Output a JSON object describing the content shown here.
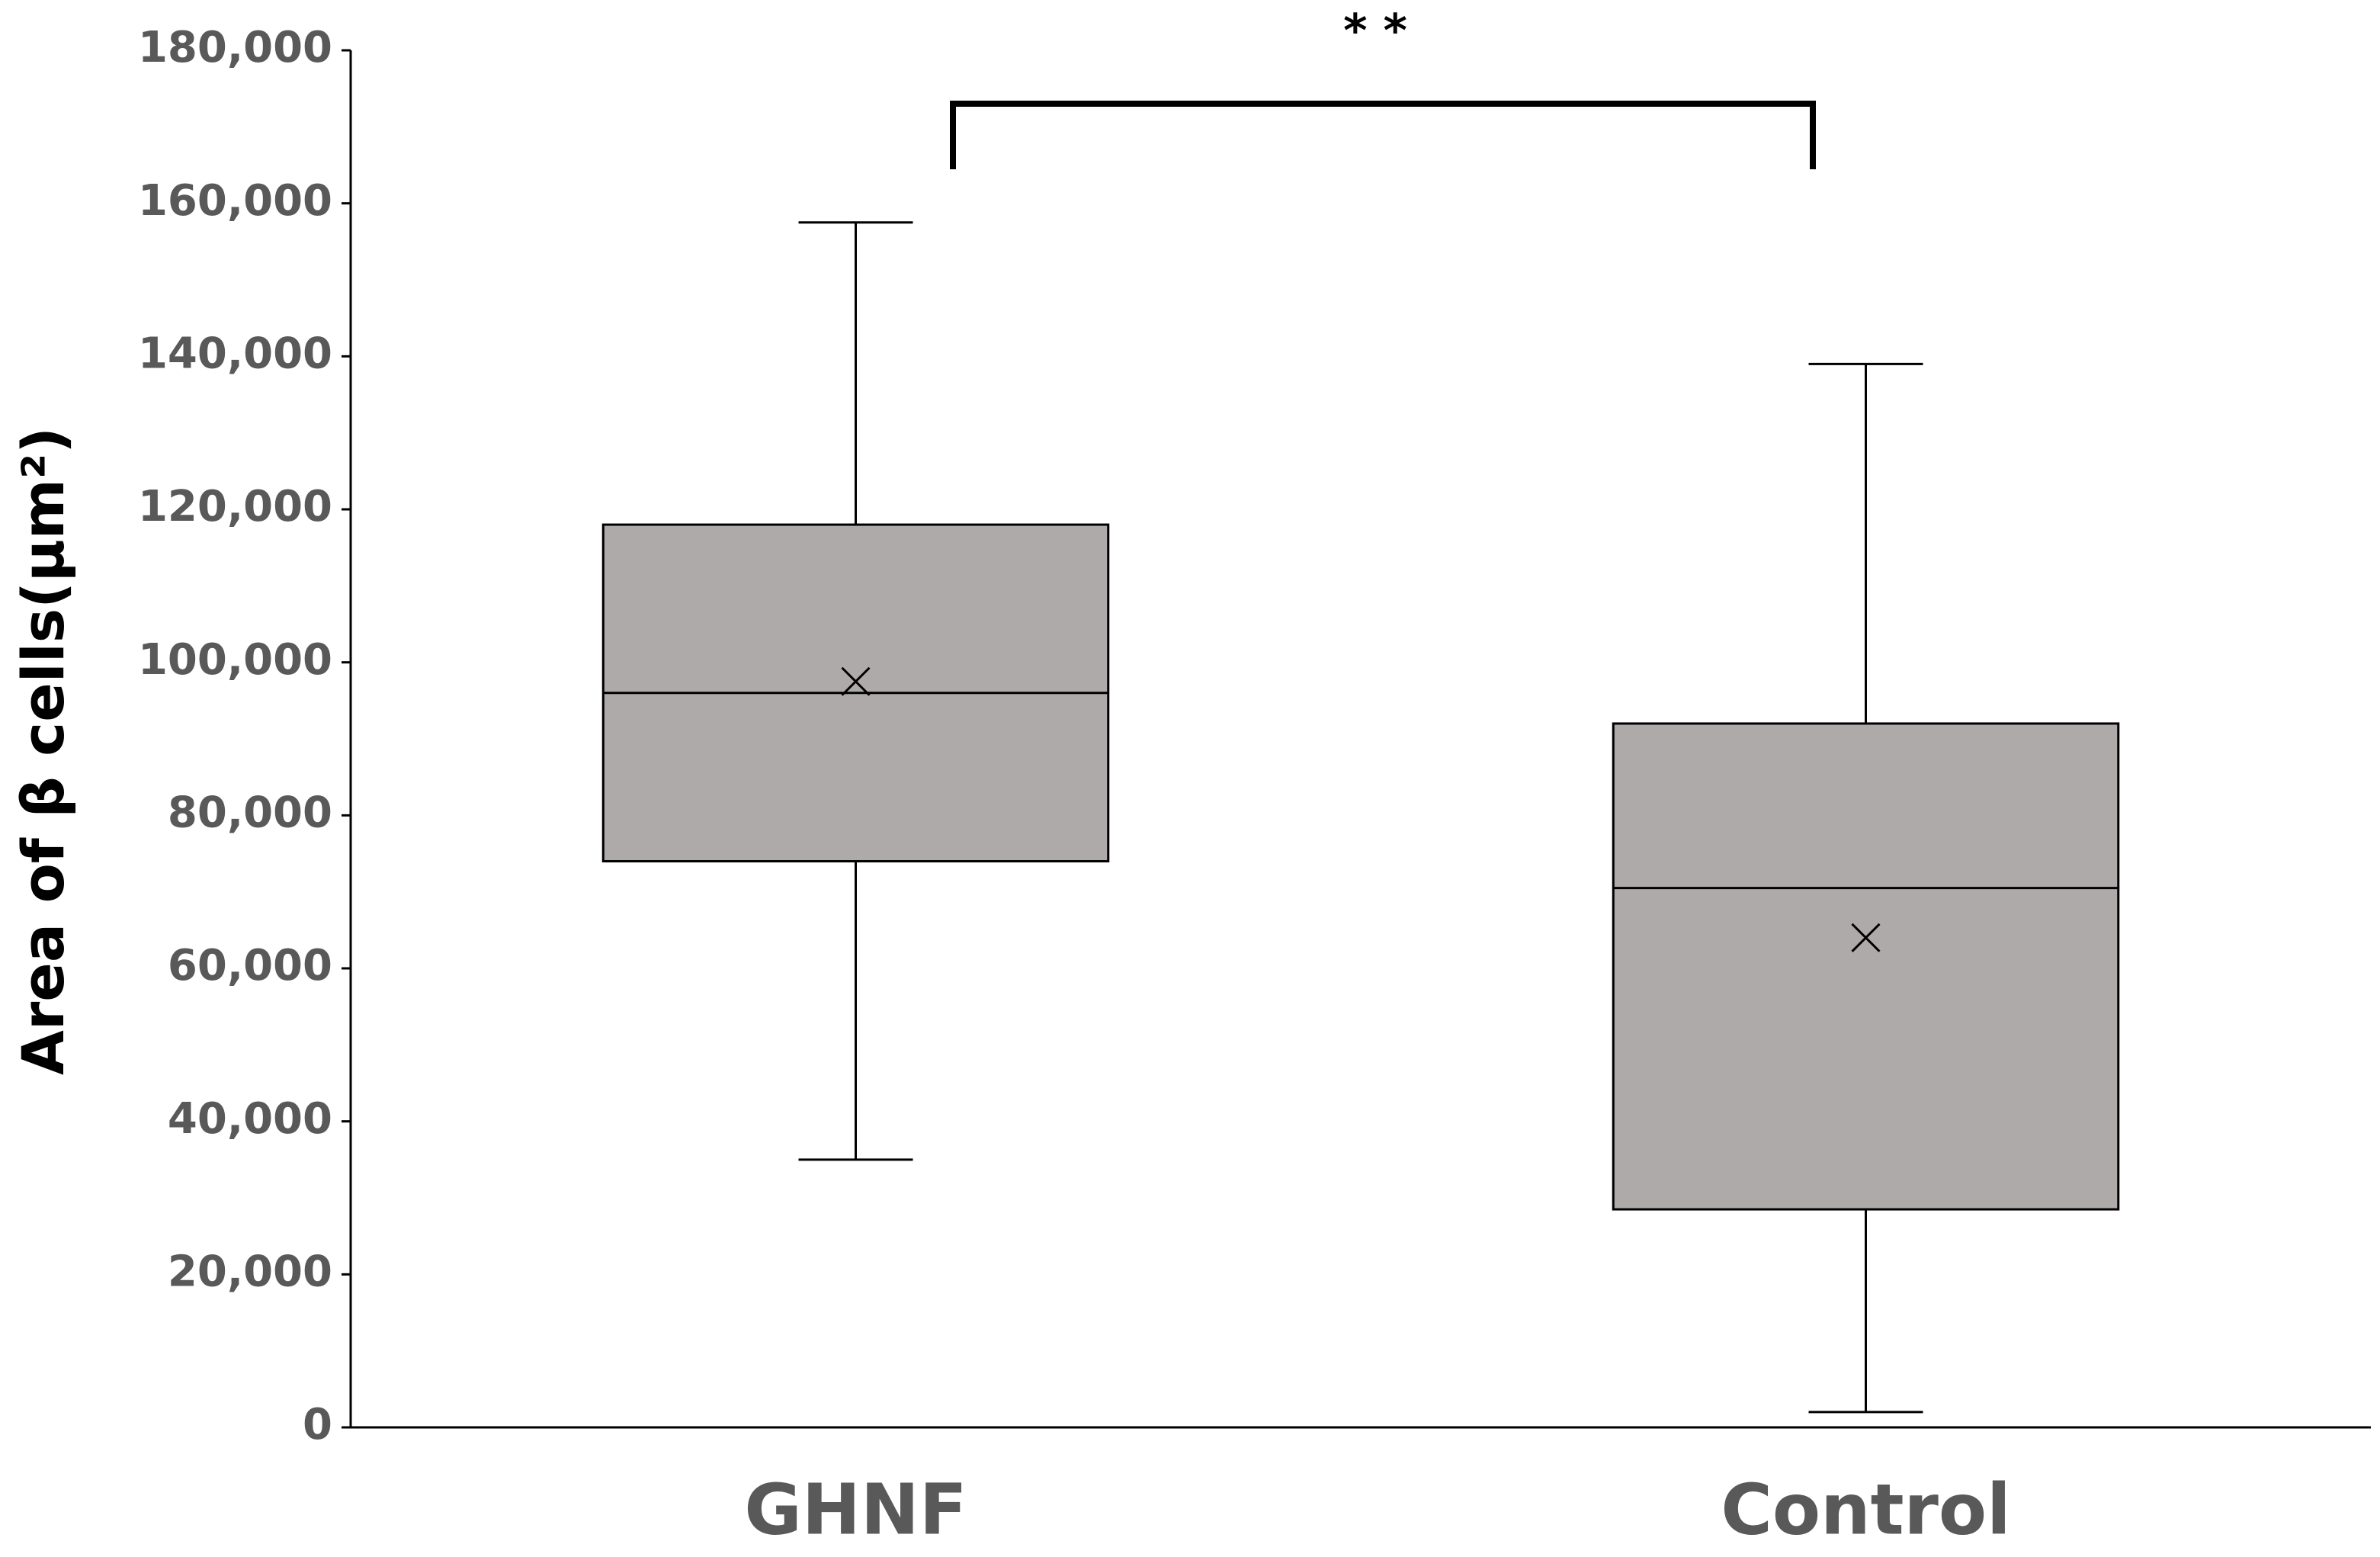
{
  "chart_data": {
    "type": "box",
    "y_label": "Area of β cells(μm²)",
    "annotation": "* *",
    "categories": [
      "GHNF",
      "Control"
    ],
    "boxes": [
      {
        "min": 35000,
        "q1": 74000,
        "median": 96000,
        "q3": 118000,
        "max": 157500,
        "mean": 97500
      },
      {
        "min": 2000,
        "q1": 28500,
        "median": 70500,
        "q3": 92000,
        "max": 139000,
        "mean": 64000
      }
    ],
    "color": "#aeaaaa",
    "ylim": [
      0,
      180000
    ],
    "yticks": [
      0,
      {
        "value": 20000,
        "label": "20,000"
      },
      {
        "value": 40000,
        "label": "40,000"
      },
      {
        "value": 60000,
        "label": "60,000"
      },
      {
        "value": 80000,
        "label": "80,000"
      },
      {
        "value": 100000,
        "label": "100,000"
      },
      {
        "value": 120000,
        "label": "120,000"
      },
      {
        "value": 140000,
        "label": "140,000"
      },
      {
        "value": 160000,
        "label": "160,000"
      },
      {
        "value": 180000,
        "label": "180,000"
      }
    ],
    "grid": false
  }
}
